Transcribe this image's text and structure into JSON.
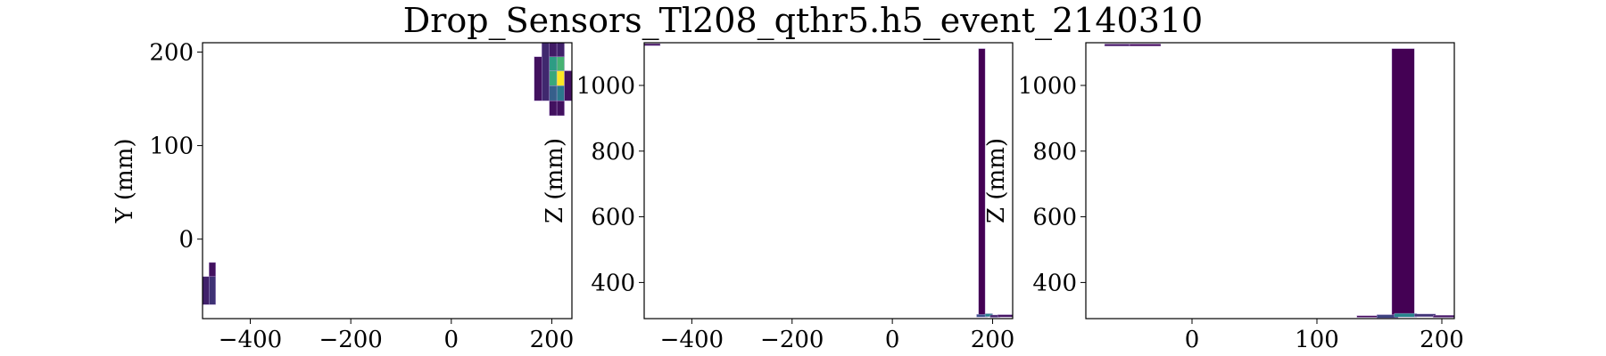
{
  "figure": {
    "title": "Drop_Sensors_Tl208_qthr5.h5_event_2140310"
  },
  "colors": {
    "viridis_dark": "#440154",
    "viridis_blue": "#31688e",
    "viridis_teal": "#21918c",
    "viridis_green": "#35b779",
    "viridis_yellow": "#fde725",
    "edge": "#b8a0d8"
  },
  "chart_data": [
    {
      "type": "heatmap",
      "title": "",
      "xlabel": "",
      "ylabel": "Y (mm)",
      "xlim": [
        -495,
        240
      ],
      "ylim": [
        -85,
        210
      ],
      "xticks": [
        -400,
        -200,
        0,
        200
      ],
      "yticks": [
        0,
        100,
        200
      ],
      "cells": [
        {
          "x0": -495,
          "x1": -482,
          "y0": -70,
          "y1": -40,
          "c": 0.1
        },
        {
          "x0": -482,
          "x1": -469,
          "y0": -70,
          "y1": -40,
          "c": 0.15
        },
        {
          "x0": -482,
          "x1": -469,
          "y0": -40,
          "y1": -25,
          "c": 0.05
        },
        {
          "x0": 165,
          "x1": 180,
          "y0": 148,
          "y1": 195,
          "c": 0.05
        },
        {
          "x0": 180,
          "x1": 195,
          "y0": 148,
          "y1": 210,
          "c": 0.12
        },
        {
          "x0": 195,
          "x1": 210,
          "y0": 132,
          "y1": 148,
          "c": 0.05
        },
        {
          "x0": 195,
          "x1": 210,
          "y0": 148,
          "y1": 164,
          "c": 0.3
        },
        {
          "x0": 195,
          "x1": 210,
          "y0": 164,
          "y1": 180,
          "c": 0.6
        },
        {
          "x0": 195,
          "x1": 210,
          "y0": 180,
          "y1": 195,
          "c": 0.55
        },
        {
          "x0": 195,
          "x1": 210,
          "y0": 195,
          "y1": 210,
          "c": 0.08
        },
        {
          "x0": 210,
          "x1": 225,
          "y0": 132,
          "y1": 148,
          "c": 0.05
        },
        {
          "x0": 210,
          "x1": 225,
          "y0": 148,
          "y1": 164,
          "c": 0.4
        },
        {
          "x0": 210,
          "x1": 225,
          "y0": 164,
          "y1": 180,
          "c": 1.0
        },
        {
          "x0": 210,
          "x1": 225,
          "y0": 180,
          "y1": 195,
          "c": 0.65
        },
        {
          "x0": 210,
          "x1": 225,
          "y0": 195,
          "y1": 210,
          "c": 0.1
        },
        {
          "x0": 225,
          "x1": 240,
          "y0": 148,
          "y1": 180,
          "c": 0.05
        }
      ]
    },
    {
      "type": "heatmap",
      "title": "",
      "xlabel": "",
      "ylabel": "Z (mm)",
      "xlim": [
        -495,
        240
      ],
      "ylim": [
        290,
        1130
      ],
      "xticks": [
        -400,
        -200,
        0,
        200
      ],
      "yticks": [
        400,
        600,
        800,
        1000
      ],
      "cells": [
        {
          "x0": -495,
          "x1": -463,
          "y0": 1121,
          "y1": 1127,
          "c": 0.05
        },
        {
          "x0": 172,
          "x1": 185,
          "y0": 298,
          "y1": 1112,
          "c": 0.0
        },
        {
          "x0": 168,
          "x1": 190,
          "y0": 295,
          "y1": 303,
          "c": 0.25
        },
        {
          "x0": 185,
          "x1": 200,
          "y0": 296,
          "y1": 305,
          "c": 0.45
        },
        {
          "x0": 195,
          "x1": 215,
          "y0": 294,
          "y1": 301,
          "c": 0.1
        },
        {
          "x0": 210,
          "x1": 240,
          "y0": 295,
          "y1": 302,
          "c": 0.05
        }
      ]
    },
    {
      "type": "heatmap",
      "title": "",
      "xlabel": "",
      "ylabel": "Z (mm)",
      "xlim": [
        -85,
        210
      ],
      "ylim": [
        290,
        1130
      ],
      "xticks": [
        0,
        100,
        200
      ],
      "yticks": [
        400,
        600,
        800,
        1000
      ],
      "cells": [
        {
          "x0": -70,
          "x1": -50,
          "y0": 1120,
          "y1": 1126,
          "c": 0.05
        },
        {
          "x0": -50,
          "x1": -25,
          "y0": 1120,
          "y1": 1126,
          "c": 0.02
        },
        {
          "x0": 160,
          "x1": 178,
          "y0": 300,
          "y1": 1112,
          "c": 0.0
        },
        {
          "x0": 132,
          "x1": 150,
          "y0": 294,
          "y1": 299,
          "c": 0.02
        },
        {
          "x0": 148,
          "x1": 165,
          "y0": 292,
          "y1": 302,
          "c": 0.2
        },
        {
          "x0": 162,
          "x1": 180,
          "y0": 295,
          "y1": 306,
          "c": 0.45
        },
        {
          "x0": 178,
          "x1": 195,
          "y0": 296,
          "y1": 304,
          "c": 0.15
        },
        {
          "x0": 193,
          "x1": 210,
          "y0": 294,
          "y1": 300,
          "c": 0.05
        }
      ]
    }
  ]
}
